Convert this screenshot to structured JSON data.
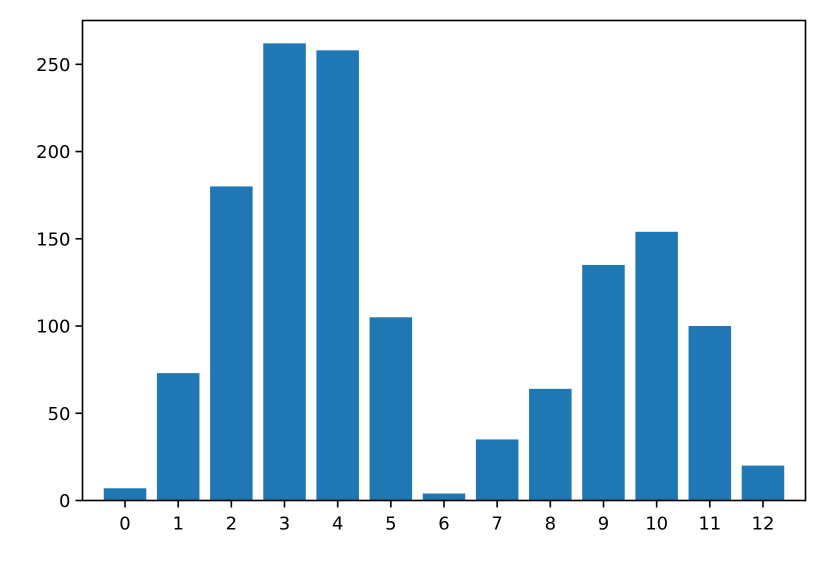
{
  "chart_data": {
    "type": "bar",
    "categories": [
      "0",
      "1",
      "2",
      "3",
      "4",
      "5",
      "6",
      "7",
      "8",
      "9",
      "10",
      "11",
      "12"
    ],
    "values": [
      7,
      73,
      180,
      262,
      258,
      105,
      4,
      35,
      64,
      135,
      154,
      100,
      20
    ],
    "title": "",
    "xlabel": "",
    "ylabel": "",
    "ylim": [
      0,
      275.1
    ],
    "yticks": [
      0,
      50,
      100,
      150,
      200,
      250
    ],
    "grid": false,
    "bar_color": "#1f77b4"
  }
}
